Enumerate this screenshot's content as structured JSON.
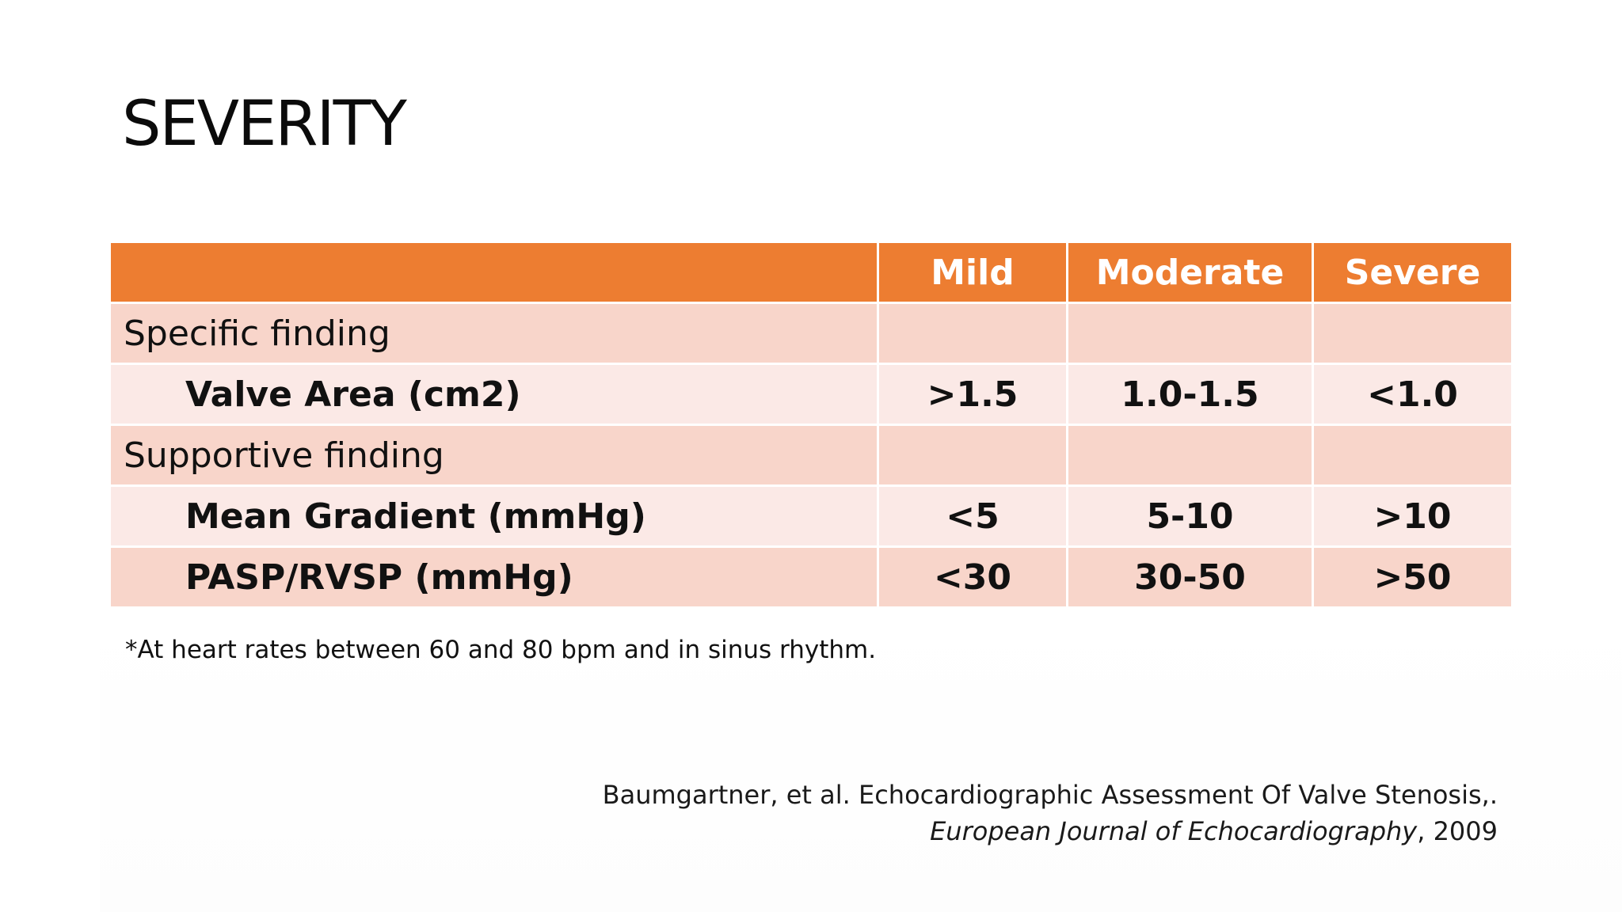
{
  "slide": {
    "title": "SEVERITY"
  },
  "table": {
    "columns": [
      "",
      "Mild",
      "Moderate",
      "Severe"
    ],
    "rows": [
      {
        "label": "Specific finding",
        "mild": "",
        "moderate": "",
        "severe": ""
      },
      {
        "label": "Valve Area (cm2)",
        "mild": ">1.5",
        "moderate": "1.0-1.5",
        "severe": "<1.0"
      },
      {
        "label": "Supportive finding",
        "mild": "",
        "moderate": "",
        "severe": ""
      },
      {
        "label": "Mean Gradient (mmHg)",
        "mild": "<5",
        "moderate": "5-10",
        "severe": ">10"
      },
      {
        "label": "PASP/RVSP (mmHg)",
        "mild": "<30",
        "moderate": "30-50",
        "severe": ">50"
      }
    ]
  },
  "footnote": "*At heart rates between 60 and 80 bpm and in sinus rhythm.",
  "citation": {
    "line1": "Baumgartner, et al. Echocardiographic Assessment Of Valve Stenosis,.",
    "journal": "European Journal of Echocardiography",
    "year_suffix": ", 2009"
  },
  "colors": {
    "header": "#ed7d31",
    "row_dark": "#f8d5ca",
    "row_light": "#fbe9e6"
  }
}
